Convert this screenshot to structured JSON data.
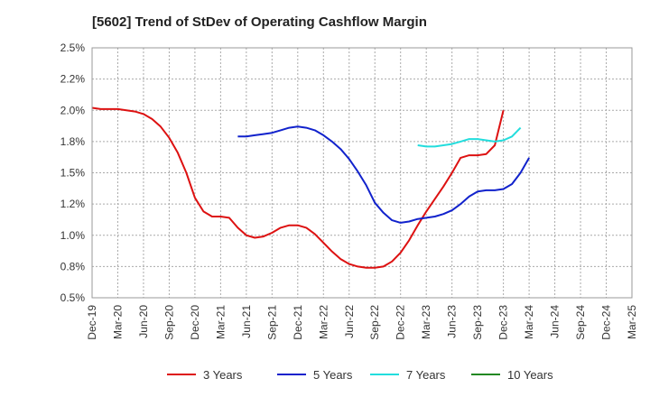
{
  "chart_data": {
    "type": "line",
    "title": "[5602]  Trend of StDev of Operating Cashflow Margin",
    "xlabel": "",
    "ylabel": "",
    "ylim": [
      0.5,
      2.5
    ],
    "y_ticks": [
      "0.5%",
      "0.8%",
      "1.0%",
      "1.2%",
      "1.5%",
      "1.8%",
      "2.0%",
      "2.2%",
      "2.5%"
    ],
    "y_tick_values": [
      0.5,
      0.75,
      1.0,
      1.25,
      1.5,
      1.75,
      2.0,
      2.25,
      2.5
    ],
    "x_ticks": [
      "Dec-19",
      "Mar-20",
      "Jun-20",
      "Sep-20",
      "Dec-20",
      "Mar-21",
      "Jun-21",
      "Sep-21",
      "Dec-21",
      "Mar-22",
      "Jun-22",
      "Sep-22",
      "Dec-22",
      "Mar-23",
      "Jun-23",
      "Sep-23",
      "Dec-23",
      "Mar-24",
      "Jun-24",
      "Sep-24",
      "Dec-24",
      "Mar-25"
    ],
    "grid": true,
    "legend_position": "bottom",
    "series": [
      {
        "name": "3 Years",
        "color": "#dd1111",
        "start_index": 0,
        "values": [
          2.02,
          2.01,
          2.01,
          2.01,
          2.0,
          1.99,
          1.97,
          1.93,
          1.87,
          1.78,
          1.66,
          1.5,
          1.3,
          1.19,
          1.15,
          1.15,
          1.14,
          1.06,
          1.0,
          0.98,
          0.99,
          1.02,
          1.06,
          1.08,
          1.08,
          1.06,
          1.01,
          0.94,
          0.87,
          0.81,
          0.77,
          0.75,
          0.74,
          0.74,
          0.75,
          0.79,
          0.86,
          0.96,
          1.08,
          1.19,
          1.29,
          1.39,
          1.5,
          1.62,
          1.64,
          1.64,
          1.65,
          1.72,
          2.0
        ]
      },
      {
        "name": "5 Years",
        "color": "#1122cc",
        "start_index": 17,
        "values": [
          1.79,
          1.79,
          1.8,
          1.81,
          1.82,
          1.84,
          1.86,
          1.87,
          1.86,
          1.84,
          1.8,
          1.75,
          1.69,
          1.61,
          1.51,
          1.4,
          1.26,
          1.18,
          1.12,
          1.1,
          1.11,
          1.13,
          1.14,
          1.15,
          1.17,
          1.2,
          1.25,
          1.31,
          1.35,
          1.36,
          1.36,
          1.37,
          1.41,
          1.5,
          1.62
        ]
      },
      {
        "name": "7 Years",
        "color": "#22dddd",
        "start_index": 38,
        "values": [
          1.72,
          1.71,
          1.71,
          1.72,
          1.73,
          1.75,
          1.77,
          1.77,
          1.76,
          1.75,
          1.76,
          1.79,
          1.86
        ]
      },
      {
        "name": "10 Years",
        "color": "#228822",
        "start_index": 0,
        "values": []
      }
    ]
  }
}
